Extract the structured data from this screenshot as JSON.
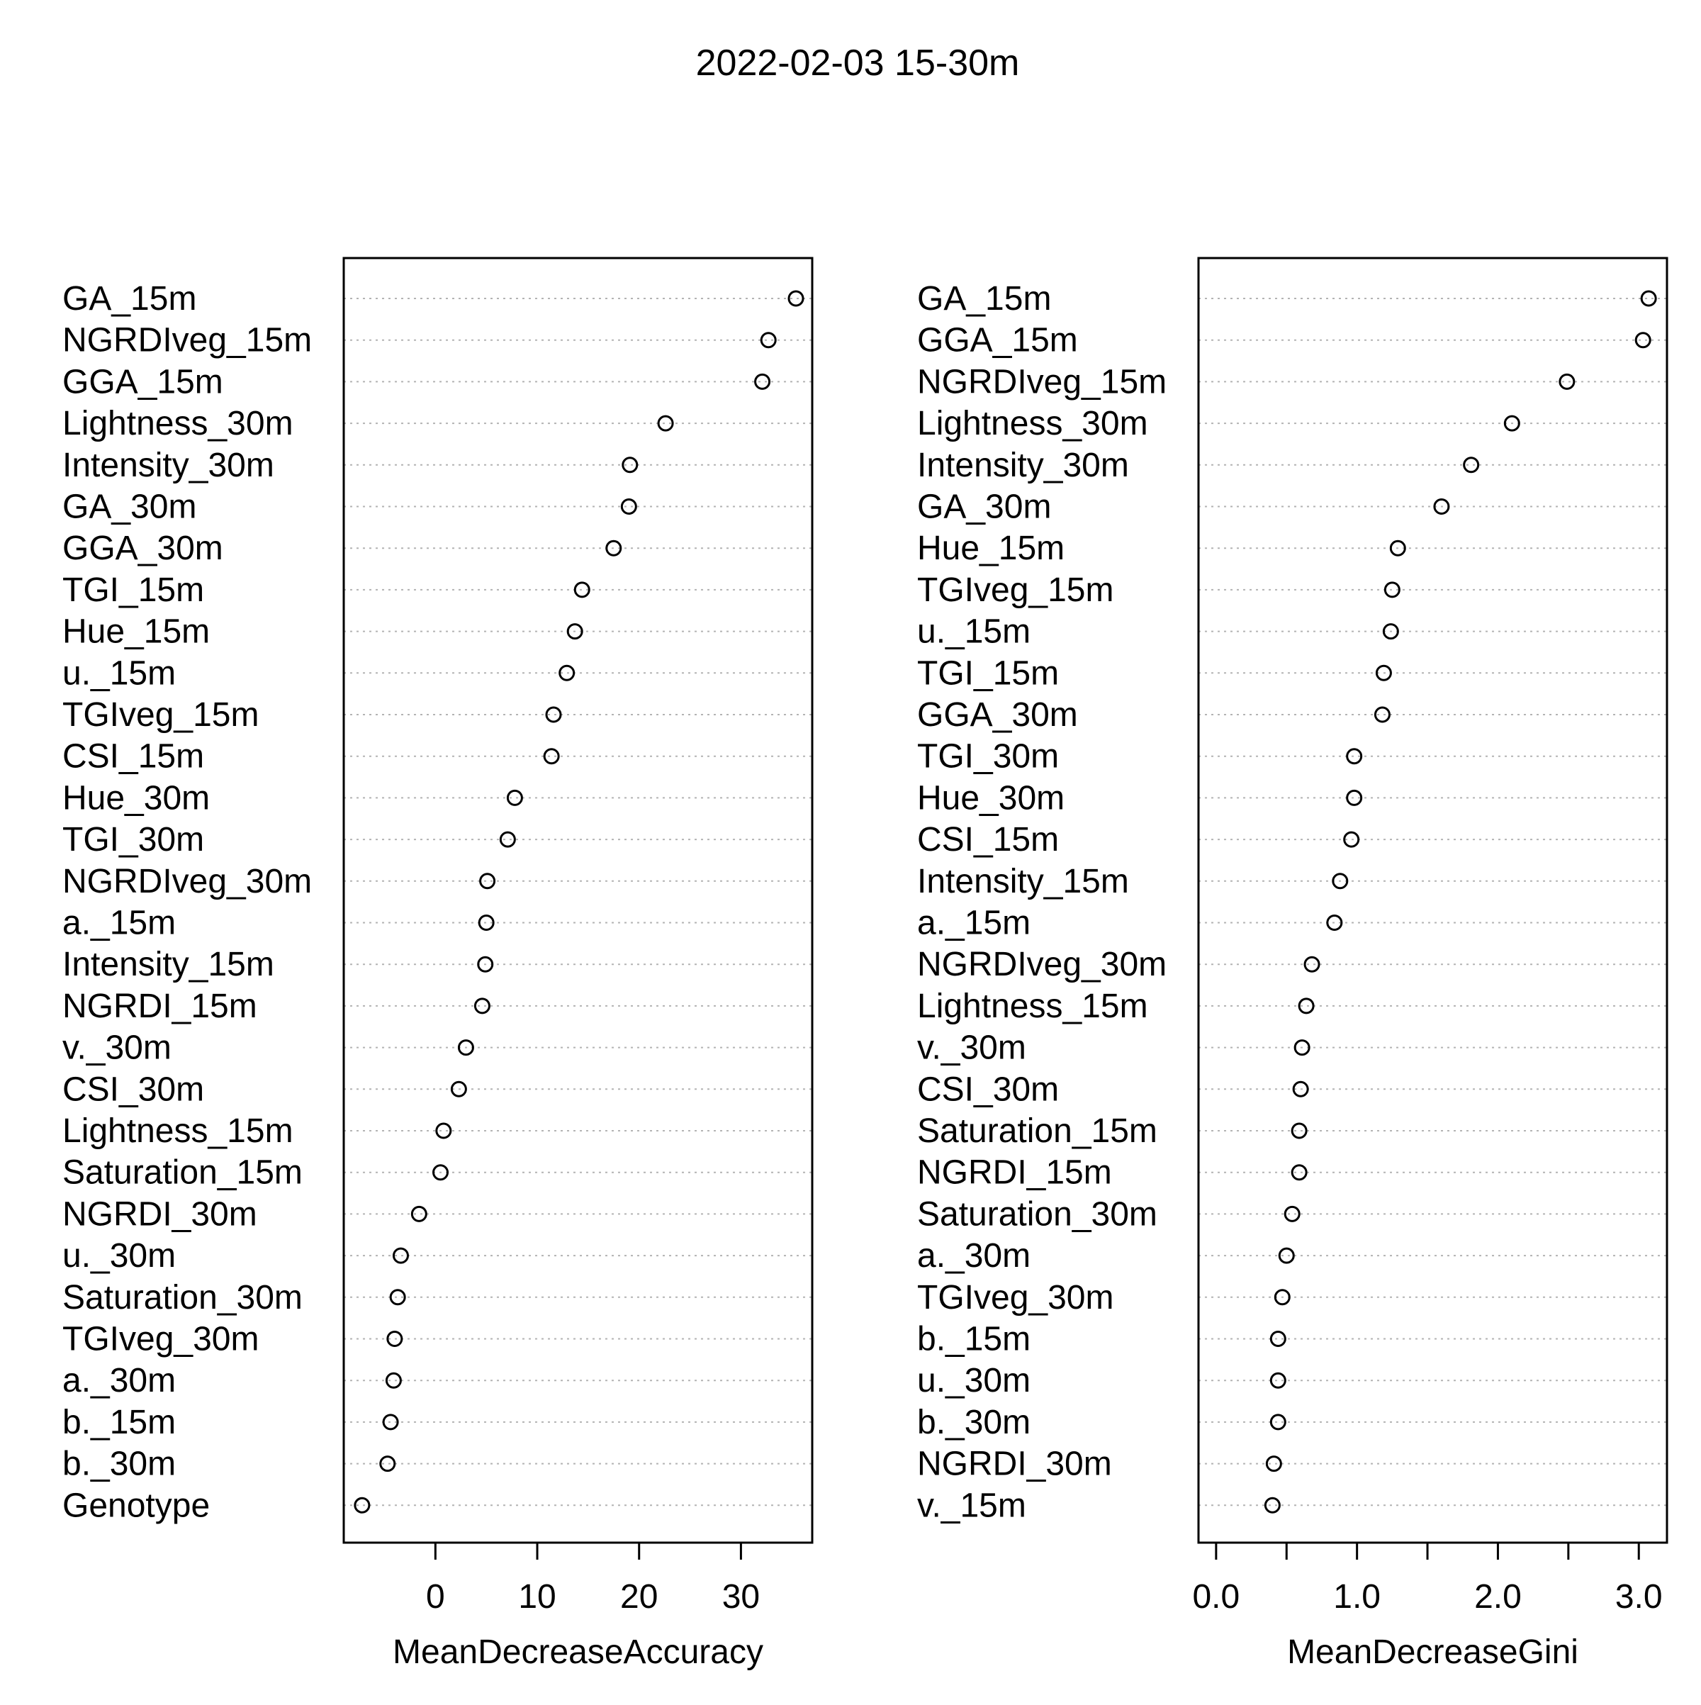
{
  "title": "2022-02-03 15-30m",
  "chart_data": [
    {
      "type": "scatter",
      "subtype": "dotchart",
      "xlabel": "MeanDecreaseAccuracy",
      "ylabel": "",
      "xlim": [
        -9,
        37
      ],
      "xticks": [
        0,
        10,
        20,
        30
      ],
      "grid": "dotted horizontal lines",
      "labels": [
        "GA_15m",
        "NGRDIveg_15m",
        "GGA_15m",
        "Lightness_30m",
        "Intensity_30m",
        "GA_30m",
        "GGA_30m",
        "TGI_15m",
        "Hue_15m",
        "u._15m",
        "TGIveg_15m",
        "CSI_15m",
        "Hue_30m",
        "TGI_30m",
        "NGRDIveg_30m",
        "a._15m",
        "Intensity_15m",
        "NGRDI_15m",
        "v._30m",
        "CSI_30m",
        "Lightness_15m",
        "Saturation_15m",
        "NGRDI_30m",
        "u._30m",
        "Saturation_30m",
        "TGIveg_30m",
        "a._30m",
        "b._15m",
        "b._30m",
        "Genotype"
      ],
      "values": [
        35.4,
        32.7,
        32.1,
        22.6,
        19.1,
        19.0,
        17.5,
        14.4,
        13.7,
        12.9,
        11.6,
        11.4,
        7.8,
        7.1,
        5.1,
        5.0,
        4.9,
        4.6,
        3.0,
        2.3,
        0.8,
        0.5,
        -1.6,
        -3.4,
        -3.7,
        -4.0,
        -4.1,
        -4.4,
        -4.7,
        -7.2
      ]
    },
    {
      "type": "scatter",
      "subtype": "dotchart",
      "xlabel": "MeanDecreaseGini",
      "ylabel": "",
      "xlim": [
        -0.125,
        3.2
      ],
      "xticks": [
        0.0,
        0.5,
        1.0,
        1.5,
        2.0,
        2.5,
        3.0
      ],
      "xtick_labels": [
        "0.0",
        "",
        "1.0",
        "",
        "2.0",
        "",
        "3.0"
      ],
      "grid": "dotted horizontal lines",
      "labels": [
        "GA_15m",
        "GGA_15m",
        "NGRDIveg_15m",
        "Lightness_30m",
        "Intensity_30m",
        "GA_30m",
        "Hue_15m",
        "TGIveg_15m",
        "u._15m",
        "TGI_15m",
        "GGA_30m",
        "TGI_30m",
        "Hue_30m",
        "CSI_15m",
        "Intensity_15m",
        "a._15m",
        "NGRDIveg_30m",
        "Lightness_15m",
        "v._30m",
        "CSI_30m",
        "Saturation_15m",
        "NGRDI_15m",
        "Saturation_30m",
        "a._30m",
        "TGIveg_30m",
        "b._15m",
        "u._30m",
        "b._30m",
        "NGRDI_30m",
        "v._15m"
      ],
      "values": [
        3.07,
        3.03,
        2.49,
        2.1,
        1.81,
        1.6,
        1.29,
        1.25,
        1.24,
        1.19,
        1.18,
        0.98,
        0.98,
        0.96,
        0.88,
        0.84,
        0.68,
        0.64,
        0.61,
        0.6,
        0.59,
        0.59,
        0.54,
        0.5,
        0.47,
        0.44,
        0.44,
        0.44,
        0.41,
        0.4
      ]
    }
  ]
}
